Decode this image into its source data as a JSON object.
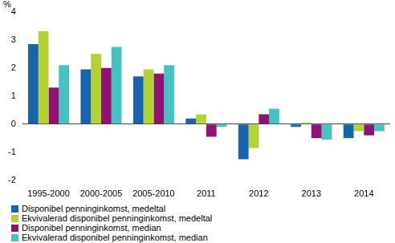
{
  "chart_data": {
    "type": "bar",
    "ylabel": "%",
    "categories": [
      "1995-2000",
      "2000-2005",
      "2005-2010",
      "2011",
      "2012",
      "2013",
      "2014"
    ],
    "series": [
      {
        "name": "Disponibel penninginkomst, medeltal",
        "color": "#1764ab",
        "values": [
          2.85,
          1.95,
          1.7,
          0.2,
          -1.25,
          -0.1,
          -0.5
        ]
      },
      {
        "name": "Ekvivalerad disponibel penninginkomst, medeltal",
        "color": "#b3d335",
        "values": [
          3.3,
          2.5,
          1.95,
          0.35,
          -0.85,
          0.05,
          -0.25
        ]
      },
      {
        "name": "Disponibel penninginkomst, median",
        "color": "#8e1372",
        "values": [
          1.3,
          2.0,
          1.8,
          -0.45,
          0.35,
          -0.5,
          -0.4
        ]
      },
      {
        "name": "Ekvivalerad disponibel penninginkomst, median",
        "color": "#45c2c1",
        "values": [
          2.1,
          2.75,
          2.1,
          -0.1,
          0.55,
          -0.55,
          -0.25
        ]
      }
    ],
    "ylim": [
      -2,
      4
    ],
    "yticks": [
      -2,
      -1,
      0,
      1,
      2,
      3,
      4
    ],
    "grid": false,
    "legend": "bottom"
  }
}
